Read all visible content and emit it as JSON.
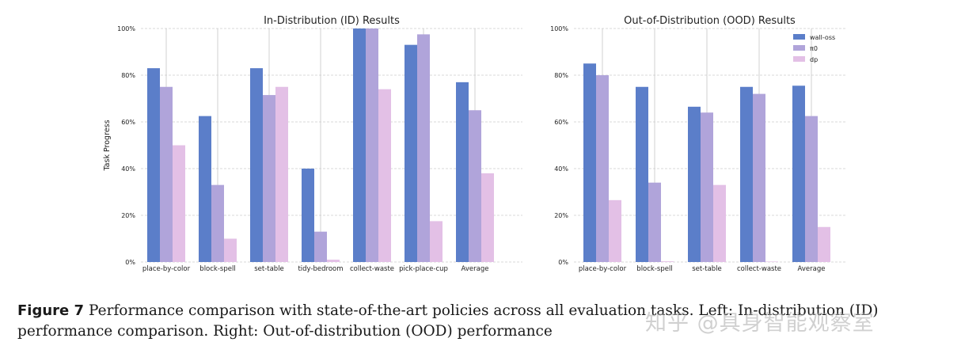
{
  "colors": {
    "wall_oss": "#5b7ec9",
    "pi0": "#b0a4da",
    "dp": "#e3c0e6",
    "grid": "#cccccc"
  },
  "chart_data": [
    {
      "type": "bar",
      "title": "In-Distribution (ID) Results",
      "ylabel": "Task Progress",
      "xlabel": "",
      "ylim": [
        0,
        100
      ],
      "yticks": [
        "0%",
        "20%",
        "40%",
        "60%",
        "80%",
        "100%"
      ],
      "categories": [
        "place-by-color",
        "block-spell",
        "set-table",
        "tidy-bedroom",
        "collect-waste",
        "pick-place-cup",
        "Average"
      ],
      "series": [
        {
          "name": "wall-oss",
          "key": "wall_oss",
          "values": [
            83,
            62.5,
            83,
            40,
            100,
            93,
            77
          ]
        },
        {
          "name": "π0",
          "key": "pi0",
          "values": [
            75,
            33,
            71.5,
            13,
            100,
            97.5,
            65
          ]
        },
        {
          "name": "dp",
          "key": "dp",
          "values": [
            50,
            10,
            75,
            1,
            74,
            17.5,
            38
          ]
        }
      ],
      "grid": true
    },
    {
      "type": "bar",
      "title": "Out-of-Distribution (OOD) Results",
      "ylabel": "",
      "xlabel": "",
      "ylim": [
        0,
        100
      ],
      "yticks": [
        "0%",
        "20%",
        "40%",
        "60%",
        "80%",
        "100%"
      ],
      "categories": [
        "place-by-color",
        "block-spell",
        "set-table",
        "collect-waste",
        "Average"
      ],
      "series": [
        {
          "name": "wall-oss",
          "key": "wall_oss",
          "values": [
            85,
            75,
            66.5,
            75,
            75.5
          ]
        },
        {
          "name": "π0",
          "key": "pi0",
          "values": [
            80,
            34,
            64,
            72,
            62.5
          ]
        },
        {
          "name": "dp",
          "key": "dp",
          "values": [
            26.5,
            0.3,
            33,
            0.2,
            15
          ]
        }
      ],
      "legend": [
        "wall-oss",
        "π0",
        "dp"
      ],
      "legend_position": "top-right",
      "grid": true
    }
  ],
  "caption": {
    "label": "Figure 7",
    "text": "Performance comparison with state-of-the-art policies across all evaluation tasks. Left: In-distribution (ID) performance comparison. Right: Out-of-distribution (OOD) performance"
  },
  "watermark": "知乎 @具身智能观察室"
}
